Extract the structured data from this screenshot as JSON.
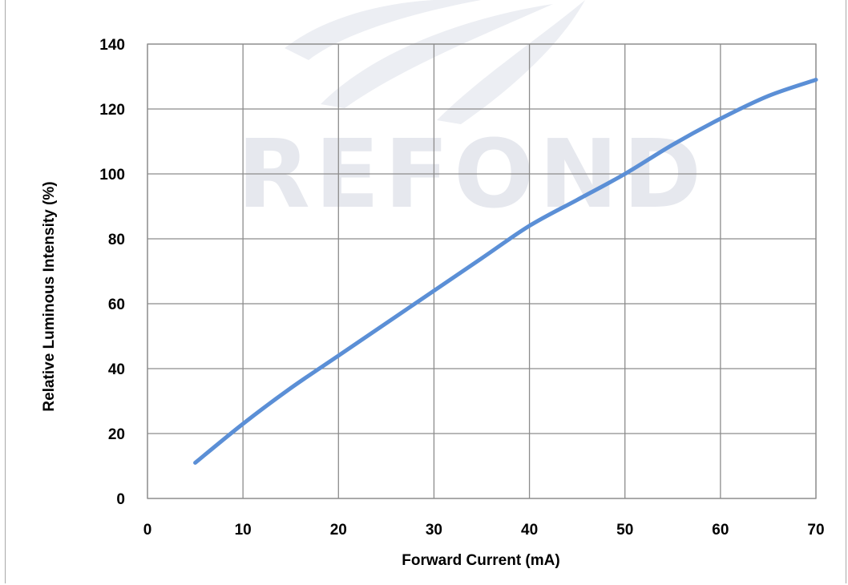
{
  "chart_data": {
    "type": "line",
    "title": "",
    "xlabel": "Forward Current (mA)",
    "ylabel": "Relative Luminous Intensity (%)",
    "xlim": [
      0,
      70
    ],
    "ylim": [
      0,
      140
    ],
    "xticks": [
      0,
      10,
      20,
      30,
      40,
      50,
      60,
      70
    ],
    "yticks": [
      0,
      20,
      40,
      60,
      80,
      100,
      120,
      140
    ],
    "grid": true,
    "legend": "none",
    "series": [
      {
        "color": "#5b8fd6",
        "x": [
          5,
          10,
          15,
          20,
          25,
          30,
          35,
          40,
          45,
          50,
          55,
          60,
          65,
          70
        ],
        "y": [
          11,
          23,
          34,
          44,
          54,
          64,
          74,
          84,
          92,
          100,
          109,
          117,
          124,
          129
        ]
      }
    ],
    "watermark": "REFOND"
  },
  "colors": {
    "grid": "#8c8c8c",
    "plot_border": "#8c8c8c",
    "line": "#5b8fd6",
    "watermark": "#e6e8ee"
  }
}
